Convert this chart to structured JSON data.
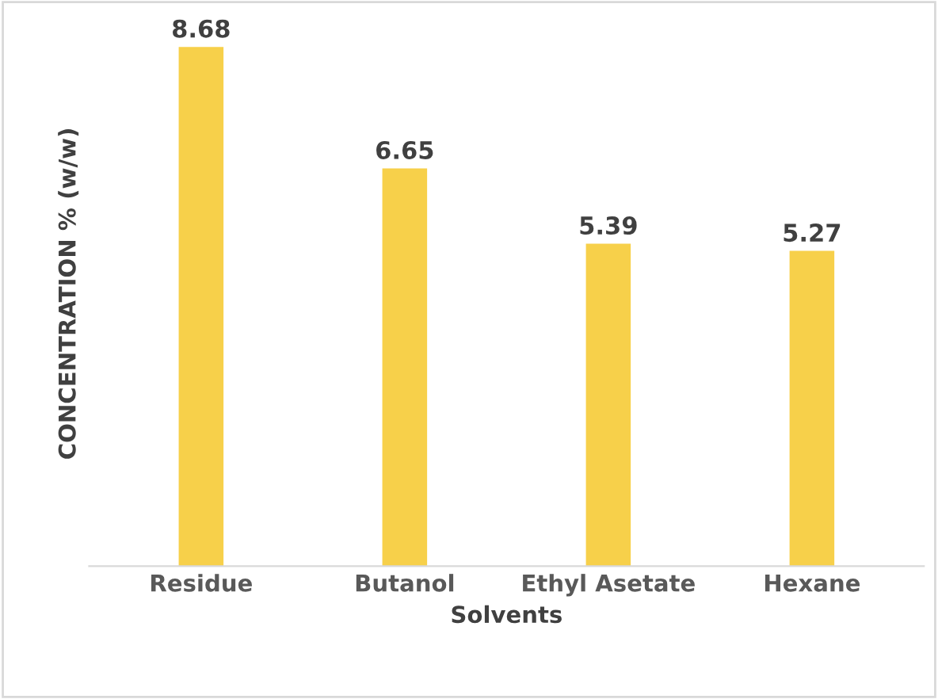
{
  "chart_data": {
    "type": "bar",
    "xlabel": "Solvents",
    "ylabel": "CONCENTRATION % (w/w)",
    "categories": [
      "Residue",
      "Butanol",
      "Ethyl Asetate",
      "Hexane"
    ],
    "values": [
      8.68,
      6.65,
      5.39,
      5.27
    ],
    "color": "#f7d04a",
    "tick_labels": "x",
    "data_labels": true,
    "grid": false,
    "legend": false
  }
}
